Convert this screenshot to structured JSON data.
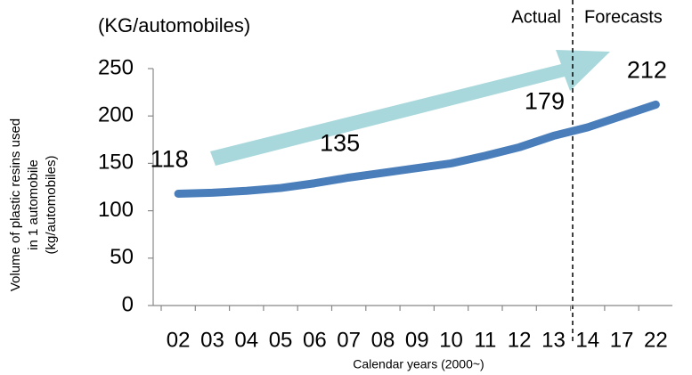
{
  "chart_data": {
    "type": "line",
    "unit_label": "(KG/automobiles)",
    "ylabel": [
      "Volume of plastic resins used",
      "in 1 automobile",
      "(kg/automobiles)"
    ],
    "xlabel": "Calendar years (2000~)",
    "annotations": [
      "Actual",
      "Forecasts"
    ],
    "categories": [
      "02",
      "03",
      "04",
      "05",
      "06",
      "07",
      "08",
      "09",
      "10",
      "11",
      "12",
      "13",
      "14",
      "17",
      "22"
    ],
    "series": [
      {
        "name": "Volume of plastic resins used in 1 automobile",
        "color": "#4a7ebb",
        "values": [
          118,
          119,
          121,
          124,
          129,
          135,
          140,
          145,
          150,
          158,
          167,
          179,
          188,
          200,
          212
        ]
      }
    ],
    "data_labels": [
      0,
      5,
      11,
      14
    ],
    "ylim": [
      0,
      250
    ],
    "yticks": [
      0,
      50,
      100,
      150,
      200,
      250
    ]
  }
}
